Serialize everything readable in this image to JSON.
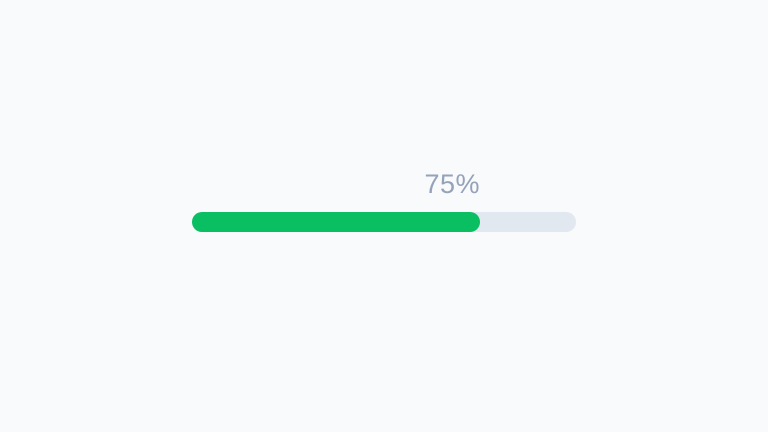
{
  "page": {
    "background_color": "#f8fafc"
  },
  "progress": {
    "percent": 75,
    "label": "75%",
    "label_color": "#94a3b8",
    "fill_color": "#0abe62",
    "track_color": "#e2e8f0"
  }
}
